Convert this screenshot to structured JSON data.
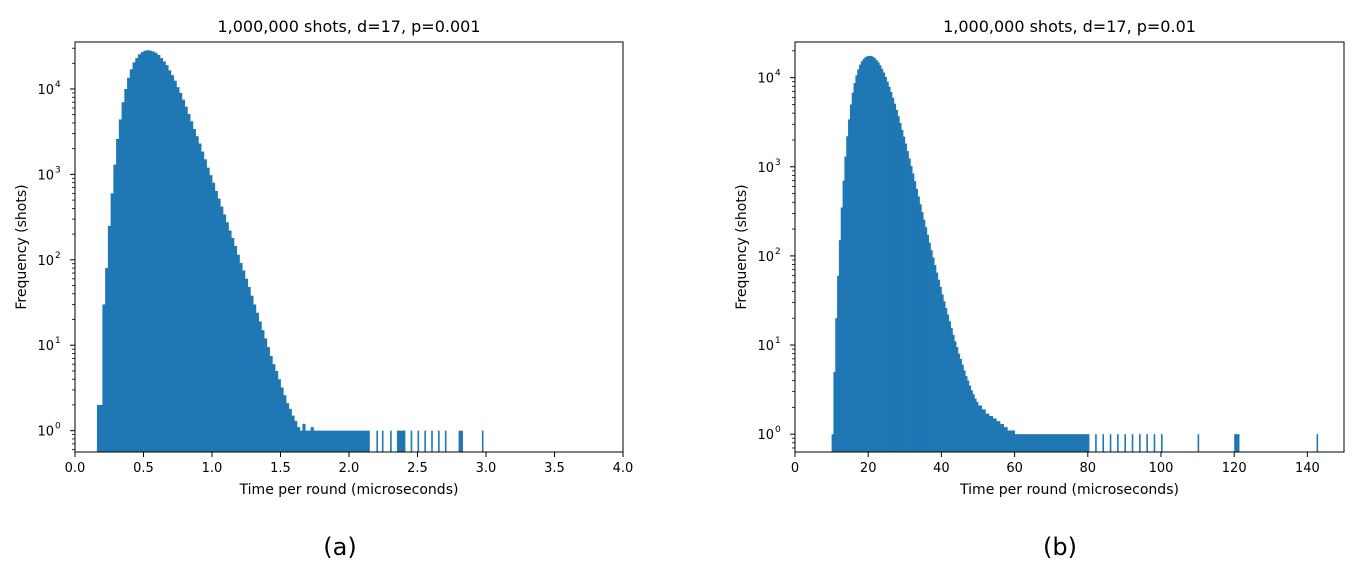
{
  "chart_data": [
    {
      "type": "bar",
      "title": "1,000,000 shots, d=17, p=0.001",
      "xlabel": "Time per round (microseconds)",
      "ylabel": "Frequency (shots)",
      "xlim": [
        0.0,
        4.0
      ],
      "ylim_log10": [
        -0.25,
        4.55
      ],
      "yscale": "log",
      "xticks": [
        "0.0",
        "0.5",
        "1.0",
        "1.5",
        "2.0",
        "2.5",
        "3.0",
        "3.5",
        "4.0"
      ],
      "xtick_values": [
        0,
        0.5,
        1.0,
        1.5,
        2.0,
        2.5,
        3.0,
        3.5,
        4.0
      ],
      "ytick_exponents": [
        "0",
        "1",
        "2",
        "3",
        "4"
      ],
      "caption": "(a)",
      "color": "#1f77b4",
      "x": [
        0.16,
        0.18,
        0.2,
        0.22,
        0.24,
        0.26,
        0.28,
        0.3,
        0.32,
        0.34,
        0.36,
        0.38,
        0.4,
        0.42,
        0.44,
        0.46,
        0.48,
        0.5,
        0.52,
        0.54,
        0.56,
        0.58,
        0.6,
        0.62,
        0.64,
        0.66,
        0.68,
        0.7,
        0.72,
        0.74,
        0.76,
        0.78,
        0.8,
        0.82,
        0.84,
        0.86,
        0.88,
        0.9,
        0.92,
        0.94,
        0.96,
        0.98,
        1.0,
        1.02,
        1.04,
        1.06,
        1.08,
        1.1,
        1.12,
        1.14,
        1.16,
        1.18,
        1.2,
        1.22,
        1.24,
        1.26,
        1.28,
        1.3,
        1.32,
        1.34,
        1.36,
        1.38,
        1.4,
        1.42,
        1.44,
        1.46,
        1.48,
        1.5,
        1.52,
        1.54,
        1.56,
        1.58,
        1.6,
        1.62,
        1.64,
        1.66,
        1.68,
        1.7,
        1.72,
        1.74,
        1.76,
        1.78,
        1.8,
        1.82,
        1.84,
        1.86,
        1.88,
        1.9,
        1.92,
        1.94,
        1.96,
        1.98,
        2.0,
        2.02,
        2.04,
        2.06,
        2.08,
        2.1,
        2.12,
        2.14,
        2.2,
        2.24,
        2.3,
        2.35,
        2.38,
        2.4,
        2.45,
        2.5,
        2.55,
        2.6,
        2.65,
        2.7,
        2.8,
        2.82,
        2.97
      ],
      "values": [
        2,
        2,
        30,
        80,
        250,
        600,
        1300,
        2600,
        4400,
        7000,
        10000,
        13500,
        17000,
        20500,
        23000,
        25500,
        27000,
        28000,
        28500,
        28000,
        27500,
        26500,
        25000,
        23000,
        21000,
        19000,
        16500,
        14500,
        12500,
        10500,
        9000,
        7500,
        6200,
        5100,
        4200,
        3400,
        2800,
        2300,
        1850,
        1500,
        1200,
        980,
        800,
        640,
        520,
        420,
        340,
        275,
        220,
        180,
        145,
        115,
        92,
        75,
        60,
        48,
        38,
        30,
        24,
        19,
        15,
        12,
        9.5,
        7.5,
        6,
        5,
        4,
        3.2,
        2.6,
        2.1,
        1.8,
        1.5,
        1.3,
        1.1,
        1,
        1.2,
        1,
        1,
        1.1,
        1,
        1,
        1,
        1,
        1,
        1,
        1,
        1,
        1,
        1,
        1,
        1,
        1,
        1,
        1,
        1,
        1,
        1,
        1,
        1,
        1,
        1,
        1,
        1,
        1,
        1,
        1,
        1,
        1,
        1,
        1,
        1,
        1,
        1,
        1,
        1
      ]
    },
    {
      "type": "bar",
      "title": "1,000,000 shots, d=17, p=0.01",
      "xlabel": "Time per round (microseconds)",
      "ylabel": "Frequency (shots)",
      "xlim": [
        0,
        150
      ],
      "ylim_log10": [
        -0.2,
        4.4
      ],
      "yscale": "log",
      "xticks": [
        "0",
        "20",
        "40",
        "60",
        "80",
        "100",
        "120",
        "140"
      ],
      "xtick_values": [
        0,
        20,
        40,
        60,
        80,
        100,
        120,
        140
      ],
      "ytick_exponents": [
        "0",
        "1",
        "2",
        "3",
        "4"
      ],
      "caption": "(b)",
      "color": "#1f77b4",
      "x": [
        10,
        10.5,
        11,
        11.5,
        12,
        12.5,
        13,
        13.5,
        14,
        14.5,
        15,
        15.5,
        16,
        16.5,
        17,
        17.5,
        18,
        18.5,
        19,
        19.5,
        20,
        20.5,
        21,
        21.5,
        22,
        22.5,
        23,
        23.5,
        24,
        24.5,
        25,
        25.5,
        26,
        26.5,
        27,
        27.5,
        28,
        28.5,
        29,
        29.5,
        30,
        30.5,
        31,
        31.5,
        32,
        32.5,
        33,
        33.5,
        34,
        34.5,
        35,
        35.5,
        36,
        36.5,
        37,
        37.5,
        38,
        38.5,
        39,
        39.5,
        40,
        40.5,
        41,
        41.5,
        42,
        42.5,
        43,
        43.5,
        44,
        44.5,
        45,
        45.5,
        46,
        46.5,
        47,
        47.5,
        48,
        48.5,
        49,
        49.5,
        50,
        51,
        52,
        53,
        54,
        55,
        56,
        57,
        58,
        59,
        60,
        61,
        62,
        63,
        64,
        65,
        66,
        67,
        68,
        69,
        70,
        71,
        72,
        73,
        74,
        75,
        76,
        77,
        78,
        79,
        80,
        82,
        84,
        86,
        88,
        90,
        92,
        94,
        96,
        98,
        100,
        110,
        120,
        121,
        142.5
      ],
      "values": [
        1,
        5,
        20,
        60,
        150,
        350,
        700,
        1300,
        2200,
        3400,
        5000,
        6800,
        8700,
        10600,
        12400,
        14000,
        15300,
        16300,
        17000,
        17400,
        17600,
        17500,
        17200,
        16600,
        15800,
        14900,
        13800,
        12600,
        11400,
        10200,
        9000,
        7900,
        6900,
        5950,
        5100,
        4350,
        3700,
        3100,
        2600,
        2180,
        1820,
        1500,
        1240,
        1020,
        840,
        690,
        565,
        465,
        380,
        310,
        255,
        210,
        172,
        141,
        116,
        96,
        79,
        65,
        54,
        45,
        37,
        31,
        26,
        22,
        18.5,
        15.5,
        13,
        11,
        9.5,
        8,
        7,
        6,
        5.2,
        4.5,
        4,
        3.5,
        3.1,
        2.8,
        2.5,
        2.3,
        2.1,
        1.9,
        1.7,
        1.6,
        1.5,
        1.4,
        1.3,
        1.2,
        1.1,
        1.1,
        1,
        1,
        1,
        1,
        1,
        1,
        1,
        1,
        1,
        1,
        1,
        1,
        1,
        1,
        1,
        1,
        1,
        1,
        1,
        1,
        1,
        1,
        1,
        1,
        1,
        1,
        1,
        1,
        1,
        1,
        1,
        1,
        1,
        1,
        1
      ]
    }
  ]
}
